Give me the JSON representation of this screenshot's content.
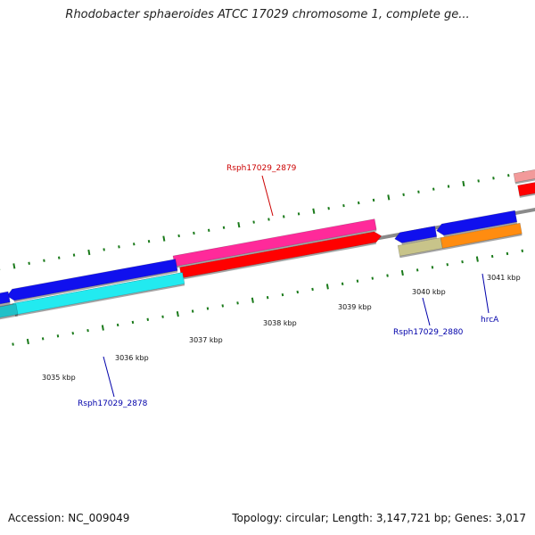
{
  "title": "Rhodobacter sphaeroides ATCC 17029 chromosome 1, complete ge...",
  "footer": {
    "accession": "Accession: NC_009049",
    "stats": "Topology: circular; Length: 3,147,721 bp; Genes: 3,017"
  },
  "colors": {
    "backbone": "#8a8a8a",
    "tick": "#1a7a1a",
    "pink": "#ff2a9a",
    "red": "#ff0000",
    "blue": "#1010ee",
    "cyan": "#22eaf0",
    "orange": "#ff8c10",
    "olive": "#c8c48a",
    "label_red": "#cc0000",
    "label_blue": "#0000aa"
  },
  "kbp_labels": [
    "3035 kbp",
    "3036 kbp",
    "3037 kbp",
    "3038 kbp",
    "3039 kbp",
    "3040 kbp",
    "3041 kbp"
  ],
  "gene_labels": {
    "g2879": "Rsph17029_2879",
    "g2878": "Rsph17029_2878",
    "g2880": "Rsph17029_2880",
    "hrcA": "hrcA"
  }
}
